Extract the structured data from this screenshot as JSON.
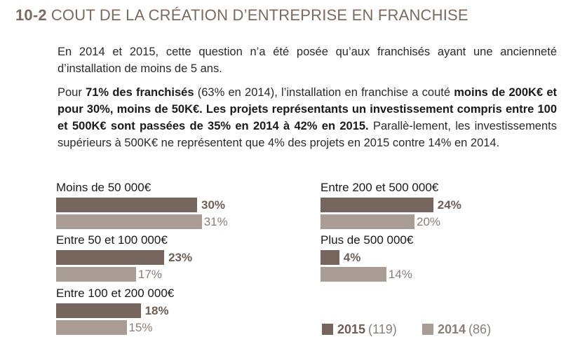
{
  "header": {
    "number": "10-2",
    "title": "COUT DE LA CRÉATION D’ENTREPRISE EN FRANCHISE"
  },
  "body": {
    "p1": "En 2014 et 2015, cette question n’a été posée qu’aux franchisés ayant une ancienneté d’installation de moins de 5 ans.",
    "p2": [
      {
        "t": "Pour ",
        "b": false
      },
      {
        "t": "71% des franchisés",
        "b": true
      },
      {
        "t": " (63% en 2014), l’installation en franchise a couté ",
        "b": false
      },
      {
        "t": "moins de 200K€ et pour 30%, moins de 50K€. Les projets représentants un investissement compris entre 100 et 500K€ sont passées de 35% en 2014 à 42% en 2015.",
        "b": true
      },
      {
        "t": " Parallè-lement, les investissements supérieurs à 500K€ ne représentent que 4% des projets en 2015 contre 14% en 2014.",
        "b": false
      }
    ]
  },
  "colors": {
    "2015": "#75655c",
    "2014": "#a89c94",
    "accent": "#7a6a60"
  },
  "chart_data": {
    "type": "bar",
    "orientation": "horizontal",
    "categories": [
      "Moins de 50 000€",
      "Entre 50 et 100 000€",
      "Entre 100 et 200 000€",
      "Entre 200 et 500 000€",
      "Plus de 500 000€"
    ],
    "series": [
      {
        "name": "2015",
        "values": [
          30,
          23,
          18,
          24,
          4
        ]
      },
      {
        "name": "2014",
        "values": [
          31,
          17,
          15,
          20,
          14
        ]
      }
    ],
    "labels_2015": [
      "30%",
      "23%",
      "18%",
      "24%",
      "4%"
    ],
    "labels_2014": [
      "31%",
      "17%",
      "15%",
      "20%",
      "14%"
    ],
    "legend": [
      {
        "year": "2015",
        "count": "(119)"
      },
      {
        "year": "2014",
        "count": "(86)"
      }
    ],
    "legend_position": "bottom-right"
  }
}
